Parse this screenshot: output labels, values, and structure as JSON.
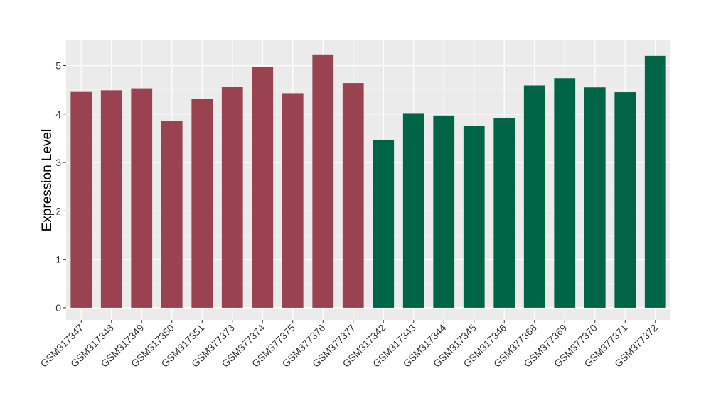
{
  "chart_data": {
    "type": "bar",
    "title": "",
    "xlabel": "",
    "ylabel": "Expression Level",
    "ylim": [
      -0.25,
      5.52
    ],
    "yticks": [
      0,
      1,
      2,
      3,
      4,
      5
    ],
    "grid": true,
    "legend": "none",
    "categories": [
      "GSM317347",
      "GSM317348",
      "GSM317349",
      "GSM317350",
      "GSM317351",
      "GSM377373",
      "GSM377374",
      "GSM377375",
      "GSM377376",
      "GSM377377",
      "GSM317342",
      "GSM317343",
      "GSM317344",
      "GSM317345",
      "GSM317346",
      "GSM377368",
      "GSM377369",
      "GSM377370",
      "GSM377371",
      "GSM377372"
    ],
    "values": [
      4.47,
      4.49,
      4.53,
      3.86,
      4.31,
      4.56,
      4.97,
      4.43,
      5.23,
      4.64,
      3.47,
      4.02,
      3.97,
      3.75,
      3.92,
      4.59,
      4.74,
      4.55,
      4.45,
      5.2
    ],
    "groups": [
      0,
      0,
      0,
      0,
      0,
      0,
      0,
      0,
      0,
      0,
      1,
      1,
      1,
      1,
      1,
      1,
      1,
      1,
      1,
      1
    ],
    "group_colors": [
      "#9a4250",
      "#006446"
    ]
  }
}
